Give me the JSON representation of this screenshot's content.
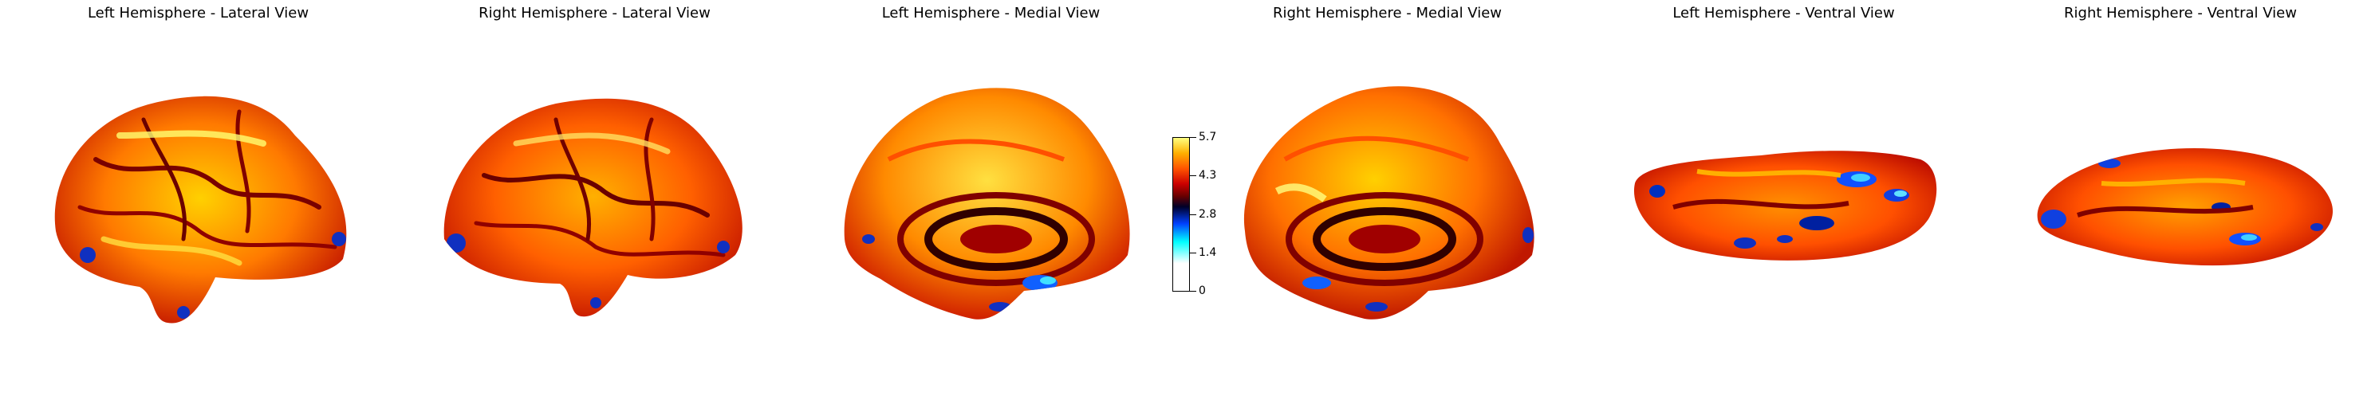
{
  "panels": [
    {
      "title": "Left Hemisphere - Lateral View"
    },
    {
      "title": "Right Hemisphere - Lateral View"
    },
    {
      "title": "Left Hemisphere - Medial View"
    },
    {
      "title": "Right Hemisphere - Medial View"
    },
    {
      "title": "Left Hemisphere - Ventral View"
    },
    {
      "title": "Right Hemisphere - Ventral View"
    }
  ],
  "colorbar": {
    "ticks": [
      "5.7",
      "4.3",
      "2.8",
      "1.4",
      "0"
    ],
    "colormap": [
      "#ffffff",
      "#00ffff",
      "#0040ff",
      "#000028",
      "#6a0000",
      "#cc0000",
      "#ff5500",
      "#ffb000",
      "#ffff80"
    ]
  }
}
